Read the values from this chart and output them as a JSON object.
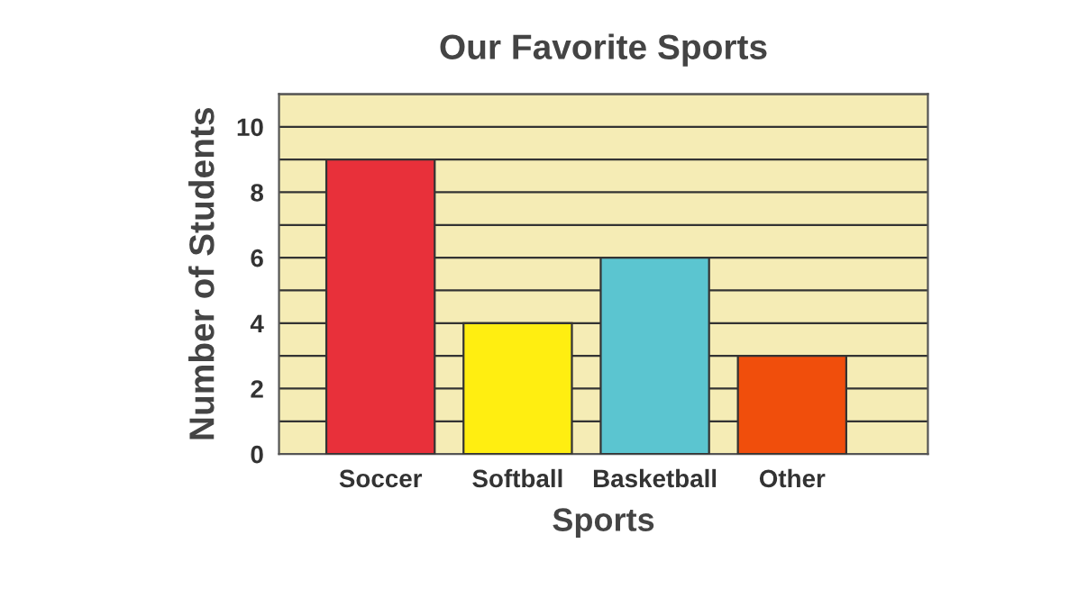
{
  "chart_data": {
    "type": "bar",
    "title": "Our Favorite Sports",
    "xlabel": "Sports",
    "ylabel": "Number of Students",
    "categories": [
      "Soccer",
      "Softball",
      "Basketball",
      "Other"
    ],
    "values": [
      9,
      4,
      6,
      3
    ],
    "colors": [
      "#e8303a",
      "#ffee11",
      "#5bc5d0",
      "#f04e0c"
    ],
    "ylim": [
      0,
      11
    ],
    "yticks": [
      0,
      {
        "value": 1,
        "label": null
      },
      2,
      {
        "value": 3,
        "label": null
      },
      4,
      {
        "value": 5,
        "label": null
      },
      6,
      {
        "value": 7,
        "label": null
      },
      8,
      {
        "value": 9,
        "label": null
      },
      10,
      {
        "value": 11,
        "label": null
      }
    ],
    "grid": "y",
    "legend": false
  }
}
